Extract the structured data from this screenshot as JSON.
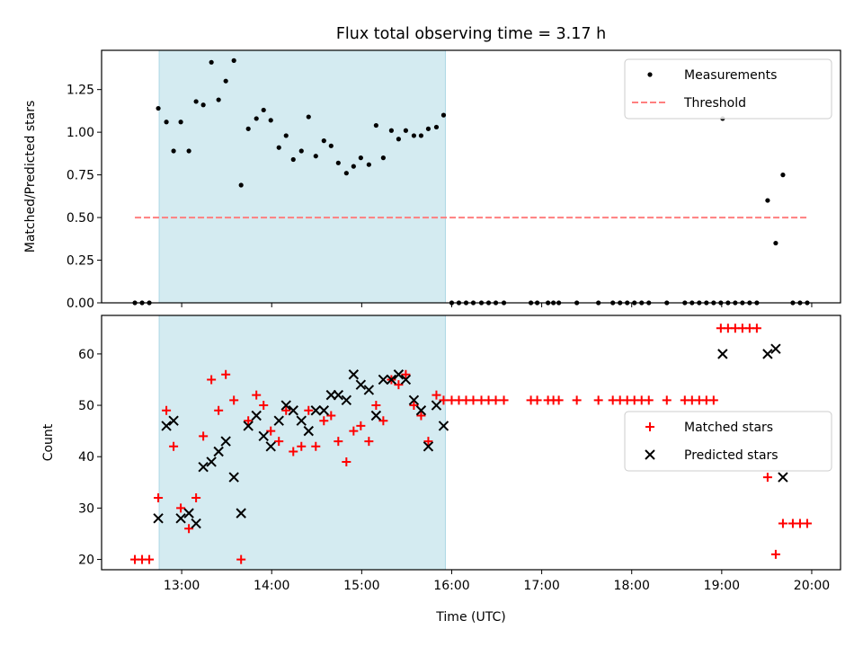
{
  "figure": {
    "title": "Flux total observing time = 3.17 h",
    "xlabel": "Time (UTC)",
    "x_ticks": [
      "13:00",
      "14:00",
      "15:00",
      "16:00",
      "17:00",
      "18:00",
      "19:00",
      "20:00"
    ]
  },
  "chart_data": [
    {
      "type": "scatter",
      "panel": "top",
      "ylabel": "Matched/Predicted stars",
      "xlim_hours": [
        12.11,
        20.32
      ],
      "ylim": [
        0,
        1.48
      ],
      "y_ticks": [
        "0.00",
        "0.25",
        "0.50",
        "0.75",
        "1.00",
        "1.25"
      ],
      "highlight_span_hours": [
        12.75,
        15.93
      ],
      "highlight_color": "#d4ebf1",
      "legend": {
        "placement": "top-right",
        "entries": [
          "Measurements",
          "Threshold"
        ]
      },
      "threshold": {
        "name": "Threshold",
        "value": 0.5,
        "x_range_hours": [
          12.48,
          19.95
        ],
        "color": "#ff7f7f",
        "style": "dashed"
      },
      "series": [
        {
          "name": "Measurements",
          "color": "#000000",
          "marker": "dot",
          "points": [
            [
              12.48,
              0
            ],
            [
              12.56,
              0
            ],
            [
              12.64,
              0
            ],
            [
              12.74,
              1.14
            ],
            [
              12.83,
              1.06
            ],
            [
              12.91,
              0.89
            ],
            [
              12.99,
              1.06
            ],
            [
              13.08,
              0.89
            ],
            [
              13.16,
              1.18
            ],
            [
              13.24,
              1.16
            ],
            [
              13.33,
              1.41
            ],
            [
              13.41,
              1.19
            ],
            [
              13.49,
              1.3
            ],
            [
              13.58,
              1.42
            ],
            [
              13.66,
              0.69
            ],
            [
              13.74,
              1.02
            ],
            [
              13.83,
              1.08
            ],
            [
              13.91,
              1.13
            ],
            [
              13.99,
              1.07
            ],
            [
              14.08,
              0.91
            ],
            [
              14.16,
              0.98
            ],
            [
              14.24,
              0.84
            ],
            [
              14.33,
              0.89
            ],
            [
              14.41,
              1.09
            ],
            [
              14.49,
              0.86
            ],
            [
              14.58,
              0.95
            ],
            [
              14.66,
              0.92
            ],
            [
              14.74,
              0.82
            ],
            [
              14.83,
              0.76
            ],
            [
              14.91,
              0.8
            ],
            [
              14.99,
              0.85
            ],
            [
              15.08,
              0.81
            ],
            [
              15.16,
              1.04
            ],
            [
              15.24,
              0.85
            ],
            [
              15.33,
              1.01
            ],
            [
              15.41,
              0.96
            ],
            [
              15.49,
              1.01
            ],
            [
              15.58,
              0.98
            ],
            [
              15.66,
              0.98
            ],
            [
              15.74,
              1.02
            ],
            [
              15.83,
              1.03
            ],
            [
              15.91,
              1.1
            ],
            [
              16.0,
              0
            ],
            [
              16.08,
              0
            ],
            [
              16.16,
              0
            ],
            [
              16.24,
              0
            ],
            [
              16.33,
              0
            ],
            [
              16.41,
              0
            ],
            [
              16.49,
              0
            ],
            [
              16.58,
              0
            ],
            [
              16.88,
              0
            ],
            [
              16.95,
              0
            ],
            [
              17.07,
              0
            ],
            [
              17.13,
              0
            ],
            [
              17.19,
              0
            ],
            [
              17.39,
              0
            ],
            [
              17.63,
              0
            ],
            [
              17.79,
              0
            ],
            [
              17.87,
              0
            ],
            [
              17.95,
              0
            ],
            [
              18.03,
              0
            ],
            [
              18.11,
              0
            ],
            [
              18.19,
              0
            ],
            [
              18.39,
              0
            ],
            [
              18.59,
              0
            ],
            [
              18.67,
              0
            ],
            [
              18.75,
              0
            ],
            [
              18.83,
              0
            ],
            [
              18.91,
              0
            ],
            [
              18.99,
              0
            ],
            [
              19.01,
              1.08
            ],
            [
              19.07,
              0
            ],
            [
              19.15,
              0
            ],
            [
              19.23,
              0
            ],
            [
              19.31,
              0
            ],
            [
              19.39,
              0
            ],
            [
              19.51,
              0.6
            ],
            [
              19.6,
              0.35
            ],
            [
              19.68,
              0.75
            ],
            [
              19.79,
              0
            ],
            [
              19.87,
              0
            ],
            [
              19.95,
              0
            ]
          ]
        }
      ]
    },
    {
      "type": "scatter",
      "panel": "bottom",
      "ylabel": "Count",
      "xlim_hours": [
        12.11,
        20.32
      ],
      "ylim": [
        18,
        67.5
      ],
      "y_ticks": [
        "20",
        "30",
        "40",
        "50",
        "60"
      ],
      "highlight_span_hours": [
        12.75,
        15.93
      ],
      "highlight_color": "#d4ebf1",
      "legend": {
        "placement": "center-right",
        "entries": [
          "Matched stars",
          "Predicted stars"
        ]
      },
      "series": [
        {
          "name": "Matched stars",
          "color": "#ff0000",
          "marker": "plus",
          "points": [
            [
              12.48,
              20
            ],
            [
              12.56,
              20
            ],
            [
              12.64,
              20
            ],
            [
              12.74,
              32
            ],
            [
              12.83,
              49
            ],
            [
              12.91,
              42
            ],
            [
              12.99,
              30
            ],
            [
              13.08,
              26
            ],
            [
              13.16,
              32
            ],
            [
              13.24,
              44
            ],
            [
              13.33,
              55
            ],
            [
              13.41,
              49
            ],
            [
              13.49,
              56
            ],
            [
              13.58,
              51
            ],
            [
              13.66,
              20
            ],
            [
              13.74,
              47
            ],
            [
              13.83,
              52
            ],
            [
              13.91,
              50
            ],
            [
              13.99,
              45
            ],
            [
              14.08,
              43
            ],
            [
              14.16,
              49
            ],
            [
              14.24,
              41
            ],
            [
              14.33,
              42
            ],
            [
              14.41,
              49
            ],
            [
              14.49,
              42
            ],
            [
              14.58,
              47
            ],
            [
              14.66,
              48
            ],
            [
              14.74,
              43
            ],
            [
              14.83,
              39
            ],
            [
              14.91,
              45
            ],
            [
              14.99,
              46
            ],
            [
              15.08,
              43
            ],
            [
              15.16,
              50
            ],
            [
              15.24,
              47
            ],
            [
              15.33,
              55
            ],
            [
              15.41,
              54
            ],
            [
              15.49,
              56
            ],
            [
              15.58,
              50
            ],
            [
              15.66,
              48
            ],
            [
              15.74,
              43
            ],
            [
              15.83,
              52
            ],
            [
              15.91,
              51
            ],
            [
              16.0,
              51
            ],
            [
              16.08,
              51
            ],
            [
              16.16,
              51
            ],
            [
              16.24,
              51
            ],
            [
              16.33,
              51
            ],
            [
              16.41,
              51
            ],
            [
              16.49,
              51
            ],
            [
              16.58,
              51
            ],
            [
              16.88,
              51
            ],
            [
              16.95,
              51
            ],
            [
              17.07,
              51
            ],
            [
              17.13,
              51
            ],
            [
              17.19,
              51
            ],
            [
              17.39,
              51
            ],
            [
              17.63,
              51
            ],
            [
              17.79,
              51
            ],
            [
              17.87,
              51
            ],
            [
              17.95,
              51
            ],
            [
              18.03,
              51
            ],
            [
              18.11,
              51
            ],
            [
              18.19,
              51
            ],
            [
              18.39,
              51
            ],
            [
              18.59,
              51
            ],
            [
              18.67,
              51
            ],
            [
              18.75,
              51
            ],
            [
              18.83,
              51
            ],
            [
              18.91,
              51
            ],
            [
              18.99,
              65
            ],
            [
              19.07,
              65
            ],
            [
              19.15,
              65
            ],
            [
              19.23,
              65
            ],
            [
              19.31,
              65
            ],
            [
              19.39,
              65
            ],
            [
              19.51,
              36
            ],
            [
              19.6,
              21
            ],
            [
              19.68,
              27
            ],
            [
              19.79,
              27
            ],
            [
              19.87,
              27
            ],
            [
              19.95,
              27
            ]
          ]
        },
        {
          "name": "Predicted stars",
          "color": "#000000",
          "marker": "x",
          "points": [
            [
              12.74,
              28
            ],
            [
              12.83,
              46
            ],
            [
              12.91,
              47
            ],
            [
              12.99,
              28
            ],
            [
              13.08,
              29
            ],
            [
              13.16,
              27
            ],
            [
              13.24,
              38
            ],
            [
              13.33,
              39
            ],
            [
              13.41,
              41
            ],
            [
              13.49,
              43
            ],
            [
              13.58,
              36
            ],
            [
              13.66,
              29
            ],
            [
              13.74,
              46
            ],
            [
              13.83,
              48
            ],
            [
              13.91,
              44
            ],
            [
              13.99,
              42
            ],
            [
              14.08,
              47
            ],
            [
              14.16,
              50
            ],
            [
              14.24,
              49
            ],
            [
              14.33,
              47
            ],
            [
              14.41,
              45
            ],
            [
              14.49,
              49
            ],
            [
              14.58,
              49
            ],
            [
              14.66,
              52
            ],
            [
              14.74,
              52
            ],
            [
              14.83,
              51
            ],
            [
              14.91,
              56
            ],
            [
              14.99,
              54
            ],
            [
              15.08,
              53
            ],
            [
              15.16,
              48
            ],
            [
              15.24,
              55
            ],
            [
              15.33,
              55
            ],
            [
              15.41,
              56
            ],
            [
              15.49,
              55
            ],
            [
              15.58,
              51
            ],
            [
              15.66,
              49
            ],
            [
              15.74,
              42
            ],
            [
              15.83,
              50
            ],
            [
              15.91,
              46
            ],
            [
              19.01,
              60
            ],
            [
              19.51,
              60
            ],
            [
              19.6,
              61
            ],
            [
              19.68,
              36
            ]
          ]
        }
      ]
    }
  ]
}
